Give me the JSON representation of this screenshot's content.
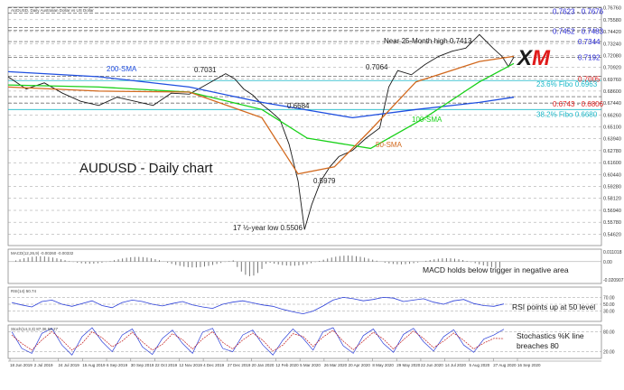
{
  "chart_data": [
    {
      "type": "line",
      "panel": "price",
      "header": "AUDUSD, Daily  Australian Dollar vs US Dollar",
      "title": "AUDUSD - Daily chart",
      "ylim": [
        0.535,
        0.768
      ],
      "series": [
        {
          "name": "",
          "color": "#1a1a1a",
          "points": [
            [
              0,
              0.7
            ],
            [
              20,
              0.688
            ],
            [
              40,
              0.694
            ],
            [
              60,
              0.684
            ],
            [
              80,
              0.676
            ],
            [
              100,
              0.672
            ],
            [
              120,
              0.68
            ],
            [
              140,
              0.676
            ],
            [
              160,
              0.672
            ],
            [
              180,
              0.684
            ],
            [
              200,
              0.683
            ],
            [
              220,
              0.693
            ],
            [
              240,
              0.703
            ],
            [
              250,
              0.698
            ],
            [
              260,
              0.688
            ],
            [
              270,
              0.682
            ],
            [
              280,
              0.673
            ],
            [
              290,
              0.666
            ],
            [
              300,
              0.658
            ],
            [
              310,
              0.634
            ],
            [
              320,
              0.598
            ],
            [
              327,
              0.5506
            ],
            [
              335,
              0.575
            ],
            [
              345,
              0.598
            ],
            [
              355,
              0.612
            ],
            [
              365,
              0.622
            ],
            [
              380,
              0.628
            ],
            [
              395,
              0.64
            ],
            [
              410,
              0.65
            ],
            [
              420,
              0.69
            ],
            [
              430,
              0.706
            ],
            [
              445,
              0.702
            ],
            [
              460,
              0.712
            ],
            [
              475,
              0.72
            ],
            [
              490,
              0.725
            ],
            [
              505,
              0.728
            ],
            [
              520,
              0.7413
            ],
            [
              535,
              0.728
            ],
            [
              545,
              0.72
            ],
            [
              552,
              0.71
            ],
            [
              558,
              0.7192
            ]
          ]
        },
        {
          "name": "200-SMA",
          "color": "#1f4fe0",
          "points": [
            [
              0,
              0.705
            ],
            [
              100,
              0.7
            ],
            [
              200,
              0.69
            ],
            [
              280,
              0.675
            ],
            [
              380,
              0.66
            ],
            [
              450,
              0.668
            ],
            [
              520,
              0.675
            ],
            [
              558,
              0.68
            ]
          ]
        },
        {
          "name": "100-SMA",
          "color": "#19d119",
          "points": [
            [
              0,
              0.692
            ],
            [
              100,
              0.69
            ],
            [
              200,
              0.685
            ],
            [
              280,
              0.668
            ],
            [
              330,
              0.64
            ],
            [
              400,
              0.63
            ],
            [
              460,
              0.66
            ],
            [
              520,
              0.695
            ],
            [
              558,
              0.713
            ]
          ]
        },
        {
          "name": "50-SMA",
          "color": "#d2691e",
          "points": [
            [
              0,
              0.69
            ],
            [
              100,
              0.686
            ],
            [
              200,
              0.685
            ],
            [
              280,
              0.66
            ],
            [
              320,
              0.605
            ],
            [
              360,
              0.612
            ],
            [
              400,
              0.648
            ],
            [
              450,
              0.695
            ],
            [
              520,
              0.715
            ],
            [
              558,
              0.72
            ]
          ]
        }
      ],
      "horizontal_levels": [
        {
          "value": 0.7623,
          "label": "0.7623",
          "color": "#2b2bd9"
        },
        {
          "value": 0.7676,
          "label": "0.7676",
          "color": "#2b2bd9"
        },
        {
          "value": 0.7452,
          "label": "0.7452",
          "color": "#2b2bd9"
        },
        {
          "value": 0.7483,
          "label": "0.7483",
          "color": "#2b2bd9"
        },
        {
          "value": 0.7344,
          "label": "0.7344",
          "color": "#2b2bd9"
        },
        {
          "value": 0.7192,
          "label": "0.7192",
          "color": "#2b2bd9"
        },
        {
          "value": 0.7005,
          "label": "0.7005",
          "color": "#e02020"
        },
        {
          "value": 0.6963,
          "label": "23.6% Fibo 0.6963",
          "color": "#18b8c8"
        },
        {
          "value": 0.6806,
          "label": "0.6806",
          "color": "#e02020"
        },
        {
          "value": 0.6743,
          "label": "0.6743",
          "color": "#e02020"
        },
        {
          "value": 0.668,
          "label": "38.2% Fibo 0.6680",
          "color": "#18b8c8"
        }
      ],
      "price_labels": [
        {
          "text": "Near 25-Month high 0.7413",
          "color": "#1a1a1a"
        },
        {
          "text": "0.7064",
          "color": "#1a1a1a"
        },
        {
          "text": "0.7031",
          "color": "#1a1a1a"
        },
        {
          "text": "200-SMA",
          "color": "#1f4fe0"
        },
        {
          "text": "0.6684",
          "color": "#1a1a1a"
        },
        {
          "text": "100-SMA",
          "color": "#19d119"
        },
        {
          "text": "50-SMA",
          "color": "#d2691e"
        },
        {
          "text": "0.5979",
          "color": "#1a1a1a"
        },
        {
          "text": "17 ½-year low 0.5506",
          "color": "#1a1a1a"
        }
      ],
      "right_axis": [
        "0.76760",
        "0.75580",
        "0.74420",
        "0.73240",
        "0.72080",
        "0.70920",
        "0.69760",
        "0.68600",
        "0.67440",
        "0.66260",
        "0.65100",
        "0.63940",
        "0.62780",
        "0.61600",
        "0.60440",
        "0.59280",
        "0.58120",
        "0.56940",
        "0.55780",
        "0.54620"
      ]
    },
    {
      "type": "bar",
      "panel": "macd",
      "header": "MACD(12,26,9) -0.00260 -0.00332",
      "annotation": "MACD holds below trigger in negative area",
      "ylim": [
        -0.021,
        0.012
      ],
      "right_axis": [
        "0.011018",
        "0.00",
        "-0.020907"
      ]
    },
    {
      "type": "line",
      "panel": "rsi",
      "header": "RSI(14) 50.74",
      "annotation": "RSI points up at 50 level",
      "ylim": [
        0,
        100
      ],
      "series": [
        {
          "name": "",
          "color": "#2b3fd9",
          "values": [
            55,
            48,
            42,
            58,
            62,
            50,
            44,
            52,
            60,
            46,
            40,
            55,
            62,
            58,
            50,
            45,
            52,
            58,
            48,
            42,
            38,
            50,
            56,
            60,
            54,
            48,
            44,
            35,
            28,
            22,
            30,
            45,
            62,
            70,
            66,
            60,
            64,
            70,
            68,
            58,
            62,
            66,
            56,
            50,
            60,
            64,
            52,
            46,
            44,
            50.74
          ]
        }
      ],
      "right_axis": [
        "70.00",
        "50.00",
        "30.00"
      ]
    },
    {
      "type": "line",
      "panel": "stochastics",
      "header": "Stoch(14,3,3) 87.36 59.27",
      "annotation": "Stochastics %K line\nbreaches 80",
      "ylim": [
        0,
        100
      ],
      "series": [
        {
          "name": "",
          "color": "#2b3fd9",
          "values": [
            80,
            30,
            15,
            75,
            90,
            40,
            10,
            65,
            92,
            50,
            20,
            70,
            88,
            35,
            12,
            60,
            85,
            45,
            15,
            78,
            90,
            30,
            20,
            70,
            85,
            40,
            10,
            55,
            88,
            60,
            25,
            80,
            92,
            38,
            15,
            68,
            88,
            45,
            18,
            72,
            90,
            50,
            22,
            65,
            86,
            40,
            18,
            58,
            70,
            87.36
          ]
        },
        {
          "name": "",
          "color": "#c22020",
          "values": [
            70,
            45,
            25,
            55,
            80,
            55,
            25,
            45,
            80,
            62,
            35,
            52,
            78,
            50,
            25,
            42,
            74,
            56,
            28,
            58,
            80,
            48,
            28,
            55,
            76,
            54,
            22,
            40,
            74,
            66,
            36,
            64,
            84,
            52,
            26,
            52,
            78,
            58,
            28,
            56,
            82,
            60,
            32,
            52,
            76,
            54,
            28,
            46,
            60,
            59.27
          ]
        }
      ],
      "right_axis": [
        "80.00",
        "20.00"
      ]
    }
  ],
  "x_axis_labels": [
    "18 Jun 2019",
    "2 Jul 2019",
    "24 Jul 2019",
    "15 Aug 2019",
    "6 Sep 2019",
    "30 Sep 2019",
    "22 Oct 2019",
    "12 Nov 2019",
    "4 Dec 2019",
    "27 Dec 2019",
    "20 Jan 2020",
    "12 Feb 2020",
    "5 Mar 2020",
    "26 Mar 2020",
    "20 Apr 2020",
    "8 May 2020",
    "29 May 2020",
    "22 Jun 2020",
    "14 Jul 2020",
    "5 Aug 2020",
    "27 Aug 2020",
    "16 Sep 2020"
  ],
  "logo": {
    "text": "XM",
    "color_a": "#1a1a1a",
    "color_b": "#e01a1a"
  },
  "colors": {
    "grid_dash": "#9a9a9a",
    "fib": "#18b8c8",
    "resist": "#2b2bd9",
    "support": "#e02020"
  }
}
